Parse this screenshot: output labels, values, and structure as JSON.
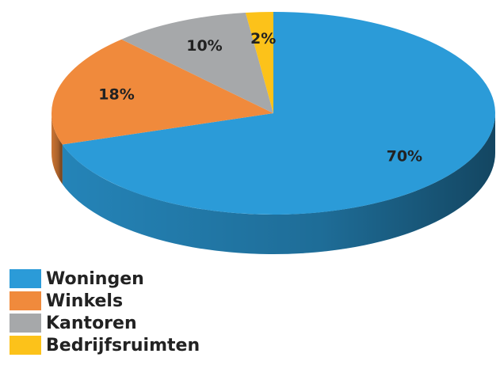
{
  "chart_data": {
    "type": "pie",
    "categories": [
      "Woningen",
      "Winkels",
      "Kantoren",
      "Bedrijfsruimten"
    ],
    "values": [
      70,
      18,
      10,
      2
    ],
    "value_labels": [
      "70%",
      "18%",
      "10%",
      "2%"
    ],
    "colors": [
      "#2b9bd8",
      "#f08a3c",
      "#a6a8aa",
      "#fcc21a"
    ],
    "legend": "bottom-left"
  }
}
